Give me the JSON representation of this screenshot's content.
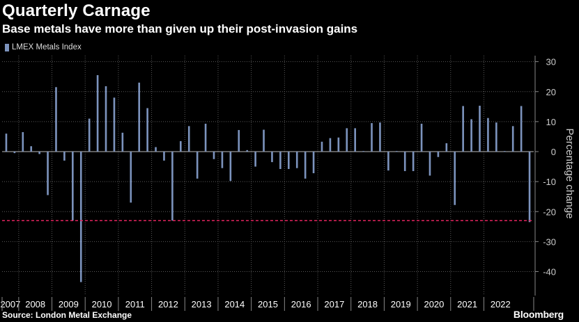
{
  "header": {
    "title": "Quarterly Carnage",
    "subtitle": "Base metals have more than given up their post-invasion gains"
  },
  "footer": {
    "source": "Source: London Metal Exchange",
    "brand": "Bloomberg"
  },
  "colors": {
    "bar": "#7c93bd",
    "reference_line": "#e0245e",
    "grid": "#5a5a5a"
  },
  "chart_data": {
    "type": "bar",
    "title": "Quarterly Carnage",
    "subtitle": "Base metals have more than given up their post-invasion gains",
    "ylabel": "Percentage change",
    "xlabel": "",
    "legend": {
      "entries": [
        "LMEX Metals Index"
      ],
      "placement": "top-left"
    },
    "ylim": [
      -48,
      32
    ],
    "yticks": [
      30,
      20,
      10,
      0,
      -10,
      -20,
      -30,
      -40
    ],
    "grid": true,
    "reference_line": {
      "value": -23,
      "style": "dashed"
    },
    "years": [
      "2007",
      "2008",
      "2009",
      "2010",
      "2011",
      "2012",
      "2013",
      "2014",
      "2015",
      "2016",
      "2017",
      "2018",
      "2019",
      "2020",
      "2021",
      "2022"
    ],
    "series": [
      {
        "name": "LMEX Metals Index",
        "values": [
          6,
          -0.5,
          6.5,
          1.8,
          -0.8,
          -14.5,
          21.5,
          -3,
          -23,
          -43.5,
          11,
          25.5,
          21.8,
          18,
          6.3,
          -17,
          23,
          14.5,
          1.5,
          -3,
          -23,
          3.5,
          8.5,
          -9,
          9.3,
          -2.5,
          -5.5,
          -9.8,
          7.2,
          0.5,
          -5,
          7.3,
          -3.5,
          -5.8,
          -5.8,
          -5.5,
          -9,
          -7.2,
          3.3,
          4.5,
          4.7,
          7.8,
          7.8,
          0.2,
          9.5,
          9.7,
          -6.3,
          0.2,
          -6.5,
          -6.5,
          9.3,
          -8,
          -1.8,
          2.8,
          -17.8,
          15.2,
          10.8,
          15.3,
          11.2,
          9.7,
          0.2,
          8.5,
          15.2,
          -23.5
        ]
      }
    ]
  }
}
